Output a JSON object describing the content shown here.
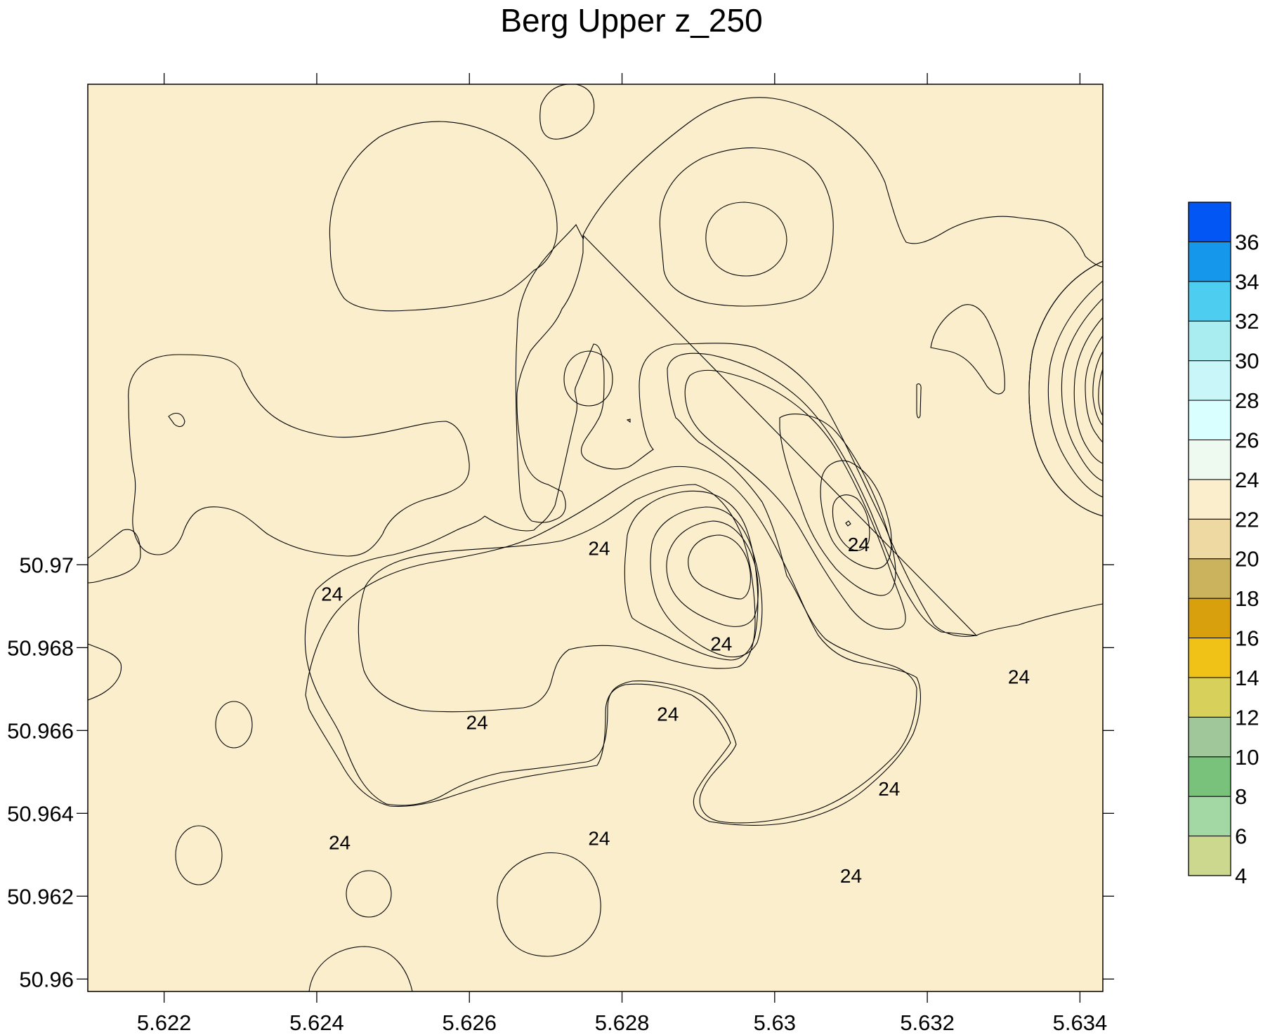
{
  "chart_data": {
    "type": "contour",
    "title": "Berg Upper z_250",
    "xlabel": "",
    "ylabel": "",
    "xlim": [
      5.621,
      5.6343
    ],
    "ylim": [
      50.9597,
      50.9816
    ],
    "x_ticks": [
      "5.622",
      "5.624",
      "5.626",
      "5.628",
      "5.63",
      "5.632",
      "5.634"
    ],
    "y_ticks": [
      "50.96",
      "50.962",
      "50.964",
      "50.966",
      "50.968",
      "50.97"
    ],
    "colorbar": {
      "levels": [
        4,
        6,
        8,
        10,
        12,
        14,
        16,
        18,
        20,
        22,
        24,
        26,
        28,
        30,
        32,
        34,
        36,
        38
      ],
      "tick_labels": [
        "4",
        "6",
        "8",
        "10",
        "12",
        "14",
        "16",
        "18",
        "20",
        "22",
        "24",
        "26",
        "28",
        "30",
        "32",
        "34",
        "36"
      ],
      "colors": [
        "#cbd88e",
        "#a3d8a4",
        "#79c27c",
        "#a0c79a",
        "#d7d05a",
        "#f0c218",
        "#d9a00e",
        "#cbb35e",
        "#eed9a2",
        "#fbeecc",
        "#eefaef",
        "#daffff",
        "#c9f6f8",
        "#a9edf1",
        "#4dcef0",
        "#1598ec",
        "#0256f4"
      ]
    },
    "contour_labels": [
      {
        "text": "24",
        "x": 5.6293,
        "y": 50.9681
      },
      {
        "text": "24",
        "x": 5.6277,
        "y": 50.9704
      },
      {
        "text": "24",
        "x": 5.6311,
        "y": 50.9705
      },
      {
        "text": "24",
        "x": 5.6242,
        "y": 50.9693
      },
      {
        "text": "24",
        "x": 5.6261,
        "y": 50.9662
      },
      {
        "text": "24",
        "x": 5.6286,
        "y": 50.9664
      },
      {
        "text": "24",
        "x": 5.6332,
        "y": 50.9673
      },
      {
        "text": "24",
        "x": 5.6315,
        "y": 50.9646
      },
      {
        "text": "24",
        "x": 5.6243,
        "y": 50.9633
      },
      {
        "text": "24",
        "x": 5.6277,
        "y": 50.9634
      },
      {
        "text": "24",
        "x": 5.631,
        "y": 50.9625
      }
    ]
  }
}
